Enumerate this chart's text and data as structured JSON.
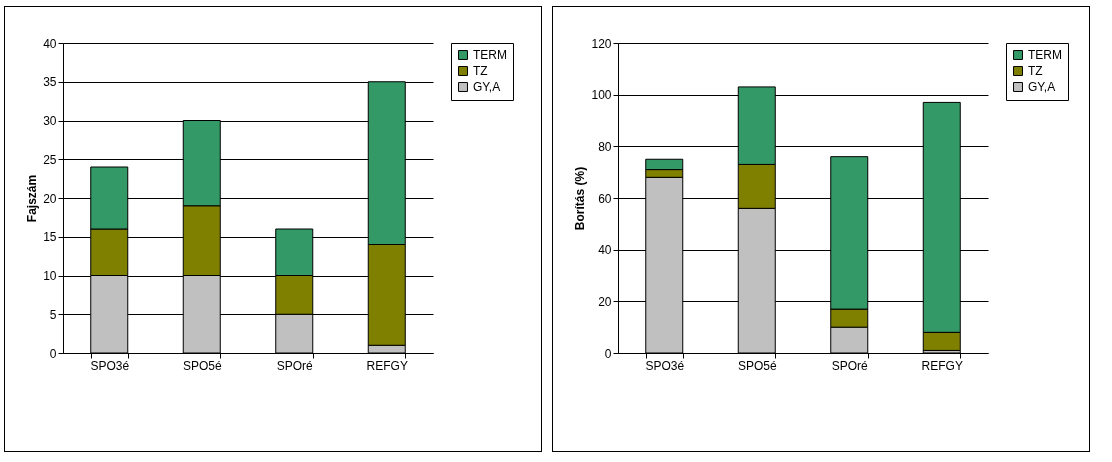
{
  "chart_data": [
    {
      "type": "bar",
      "stacked": true,
      "categories": [
        "SPO3é",
        "SPO5é",
        "SPOré",
        "REFGY"
      ],
      "ylabel": "Fajszám",
      "ylim": [
        0,
        40
      ],
      "yticks": [
        0,
        5,
        10,
        15,
        20,
        25,
        30,
        35,
        40
      ],
      "grid": "y",
      "legend": "right",
      "series": [
        {
          "name": "GY,A",
          "color": "#c0c0c0",
          "values": [
            10,
            10,
            5,
            1
          ]
        },
        {
          "name": "TZ",
          "color": "#808000",
          "values": [
            6,
            9,
            5,
            13
          ]
        },
        {
          "name": "TERM",
          "color": "#339966",
          "values": [
            8,
            11,
            6,
            21
          ]
        }
      ]
    },
    {
      "type": "bar",
      "stacked": true,
      "categories": [
        "SPO3é",
        "SPO5é",
        "SPOré",
        "REFGY"
      ],
      "ylabel": "Borítás (%)",
      "ylim": [
        0,
        120
      ],
      "yticks": [
        0,
        20,
        40,
        60,
        80,
        100,
        120
      ],
      "grid": "y",
      "legend": "right",
      "series": [
        {
          "name": "GY,A",
          "color": "#c0c0c0",
          "values": [
            68,
            56,
            10,
            1
          ]
        },
        {
          "name": "TZ",
          "color": "#808000",
          "values": [
            3,
            17,
            7,
            7
          ]
        },
        {
          "name": "TERM",
          "color": "#339966",
          "values": [
            4,
            30,
            59,
            89
          ]
        }
      ]
    }
  ]
}
